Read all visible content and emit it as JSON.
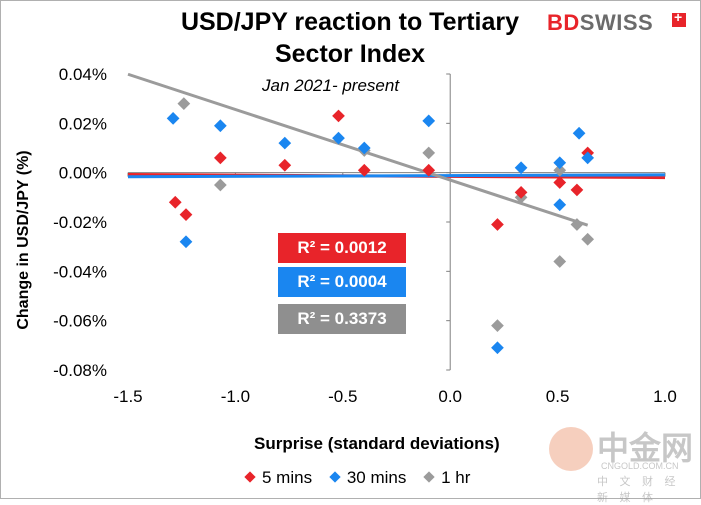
{
  "chart_data": {
    "type": "scatter",
    "title": "USD/JPY reaction to Tertiary Sector Index",
    "subtitle": "Jan 2021- present",
    "xlabel": "Surprise (standard deviations)",
    "ylabel": "Change in USD/JPY (%)",
    "xlim": [
      -1.5,
      1.0
    ],
    "ylim": [
      -0.08,
      0.04
    ],
    "x_ticks": [
      "-1.5",
      "-1.0",
      "-0.5",
      "0.0",
      "0.5",
      "1.0"
    ],
    "x_tick_values": [
      -1.5,
      -1.0,
      -0.5,
      0.0,
      0.5,
      1.0
    ],
    "y_ticks": [
      "0.04%",
      "0.02%",
      "0.00%",
      "-0.02%",
      "-0.04%",
      "-0.06%",
      "-0.08%"
    ],
    "y_tick_values": [
      0.04,
      0.02,
      0.0,
      -0.02,
      -0.04,
      -0.06,
      -0.08
    ],
    "series": [
      {
        "name": "5 mins",
        "color": "#e8242a",
        "x": [
          -1.28,
          -1.23,
          -1.07,
          -0.77,
          -0.52,
          -0.4,
          -0.1,
          0.22,
          0.33,
          0.51,
          0.59,
          0.64
        ],
        "y": [
          -0.012,
          -0.017,
          0.006,
          0.003,
          0.023,
          0.001,
          0.001,
          -0.021,
          -0.008,
          -0.004,
          -0.007,
          0.008
        ],
        "trend": {
          "slope": -0.0005,
          "intercept": -0.0015
        },
        "r2_label": "R² = 0.0012"
      },
      {
        "name": "30 mins",
        "color": "#1a86f0",
        "x": [
          -1.29,
          -1.23,
          -1.07,
          -0.77,
          -0.52,
          -0.4,
          -0.1,
          0.22,
          0.33,
          0.51,
          0.51,
          0.6,
          0.64
        ],
        "y": [
          0.022,
          -0.028,
          0.019,
          0.012,
          0.014,
          0.01,
          0.021,
          -0.071,
          0.002,
          0.004,
          -0.013,
          0.016,
          0.006
        ],
        "trend": {
          "slope": 0.0003,
          "intercept": -0.0012
        },
        "r2_label": "R² = 0.0004"
      },
      {
        "name": "1 hr",
        "color": "#9b9b9b",
        "x": [
          -1.24,
          -1.07,
          -0.4,
          -0.1,
          0.22,
          0.33,
          0.51,
          0.51,
          0.59,
          0.64
        ],
        "y": [
          0.028,
          -0.005,
          0.009,
          0.008,
          -0.062,
          -0.01,
          -0.036,
          0.001,
          -0.021,
          -0.027
        ],
        "trend": {
          "slope": -0.0286,
          "intercept": -0.003
        },
        "trend_range": [
          -1.5,
          0.64
        ],
        "r2_label": "R² = 0.3373"
      }
    ],
    "legend": [
      "5 mins",
      "30 mins",
      "1 hr"
    ],
    "legend_position": "bottom"
  },
  "brand": {
    "part1": "BD",
    "part2": "SWISS"
  },
  "watermark": {
    "text": "中金网",
    "site": "CNGOLD.COM.CN",
    "sub": "中 文 财 经 新 媒 体"
  }
}
